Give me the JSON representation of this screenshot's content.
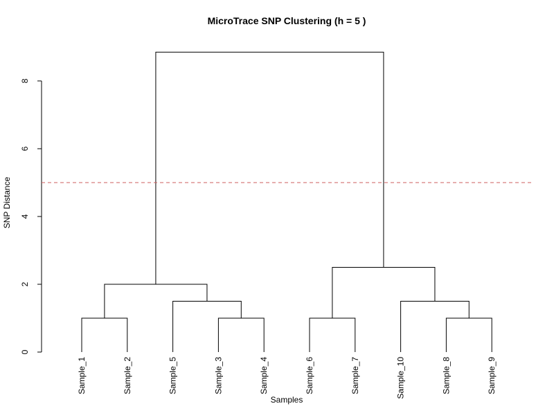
{
  "chart_data": {
    "type": "dendrogram",
    "title": "MicroTrace SNP Clustering (h = 5 )",
    "xlabel": "Samples",
    "ylabel": "SNP Distance",
    "ylim": [
      0,
      9
    ],
    "yticks": [
      0,
      2,
      4,
      6,
      8
    ],
    "leaves": [
      "Sample_1",
      "Sample_2",
      "Sample_5",
      "Sample_3",
      "Sample_4",
      "Sample_6",
      "Sample_7",
      "Sample_10",
      "Sample_8",
      "Sample_9"
    ],
    "merges": [
      {
        "left": "Sample_1",
        "right": "Sample_2",
        "height": 1.0
      },
      {
        "left": "Sample_3",
        "right": "Sample_4",
        "height": 1.0
      },
      {
        "left": "Sample_6",
        "right": "Sample_7",
        "height": 1.0
      },
      {
        "left": "Sample_8",
        "right": "Sample_9",
        "height": 1.0
      },
      {
        "left": "Sample_5",
        "right": "(Sample_3,Sample_4)",
        "height": 1.5
      },
      {
        "left": "Sample_10",
        "right": "(Sample_8,Sample_9)",
        "height": 1.5
      },
      {
        "left": "(Sample_1,Sample_2)",
        "right": "(Sample_5,(Sample_3,Sample_4))",
        "height": 2.0
      },
      {
        "left": "(Sample_6,Sample_7)",
        "right": "(Sample_10,(Sample_8,Sample_9))",
        "height": 2.5
      },
      {
        "left": "cluster_A",
        "right": "cluster_B",
        "height": 8.85
      }
    ],
    "cut_height": 5,
    "cut_color": "#cd5c5c"
  }
}
